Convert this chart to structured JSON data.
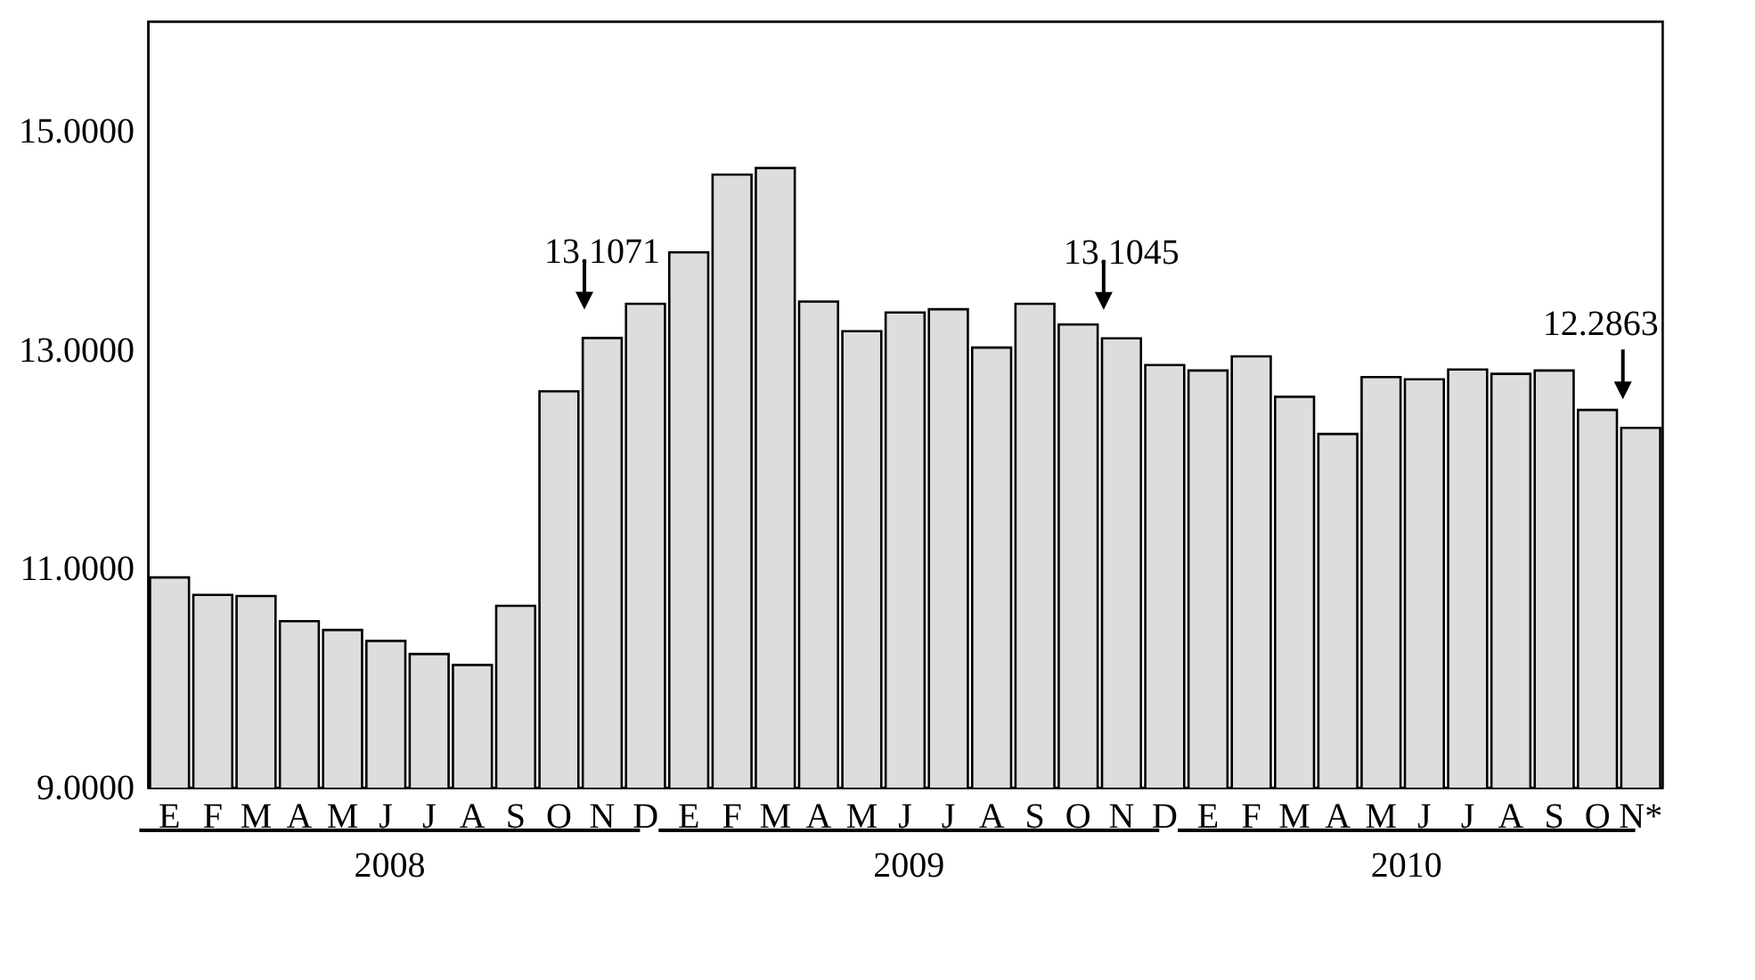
{
  "chart_data": {
    "type": "bar",
    "categories": [
      "E",
      "F",
      "M",
      "A",
      "M",
      "J",
      "J",
      "A",
      "S",
      "O",
      "N",
      "D",
      "E",
      "F",
      "M",
      "A",
      "M",
      "J",
      "J",
      "A",
      "S",
      "O",
      "N",
      "D",
      "E",
      "F",
      "M",
      "A",
      "M",
      "J",
      "J",
      "A",
      "S",
      "O",
      "N*"
    ],
    "values": [
      10.92,
      10.76,
      10.75,
      10.52,
      10.44,
      10.34,
      10.22,
      10.12,
      10.66,
      12.62,
      13.1071,
      13.42,
      13.89,
      14.6,
      14.66,
      13.44,
      13.17,
      13.34,
      13.37,
      13.02,
      13.42,
      13.23,
      13.1045,
      12.86,
      12.81,
      12.94,
      12.57,
      12.23,
      12.75,
      12.73,
      12.82,
      12.78,
      12.81,
      12.45,
      12.2863
    ],
    "value_labels": [
      null,
      null,
      null,
      null,
      null,
      null,
      null,
      null,
      null,
      null,
      "13.1071",
      null,
      null,
      null,
      null,
      null,
      null,
      null,
      null,
      null,
      null,
      null,
      "13.1045",
      null,
      null,
      null,
      null,
      null,
      null,
      null,
      null,
      null,
      null,
      null,
      "12.2863"
    ],
    "color": "#dddddd",
    "ylim": [
      9,
      16
    ],
    "yticks": [
      {
        "value": 9,
        "label": "9.0000"
      },
      {
        "value": 11,
        "label": "11.0000"
      },
      {
        "value": 13,
        "label": "13.0000"
      },
      {
        "value": 15,
        "label": "15.0000"
      }
    ],
    "annotations": [
      "2008",
      "2009",
      "2010"
    ],
    "grid": false
  }
}
